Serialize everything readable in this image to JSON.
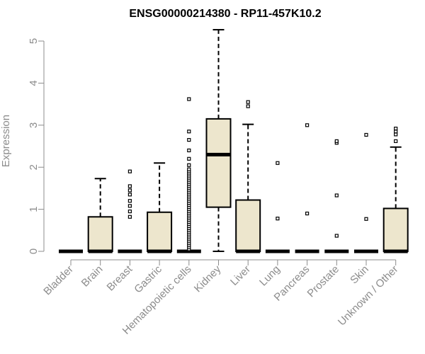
{
  "chart_data": {
    "type": "boxplot",
    "title": "ENSG00000214380 - RP11-457K10.2",
    "ylabel": "Expression",
    "xlabel": "",
    "ylim": [
      0,
      5.25
    ],
    "yticks": [
      0,
      1,
      2,
      3,
      4,
      5
    ],
    "grid": false,
    "colors": {
      "box_fill": "#ede6cd",
      "stroke": "#000000",
      "axis": "#8c8c8c"
    },
    "categories": [
      "Bladder",
      "Brain",
      "Breast",
      "Gastric",
      "Hematopoietic cells",
      "Kidney",
      "Liver",
      "Lung",
      "Pancreas",
      "Prostate",
      "Skin",
      "Unknown / Other"
    ],
    "boxes": [
      {
        "category": "Bladder",
        "q1": 0,
        "median": 0,
        "q3": 0,
        "whisker_low": 0,
        "whisker_high": 0,
        "outliers": []
      },
      {
        "category": "Brain",
        "q1": 0,
        "median": 0,
        "q3": 0.82,
        "whisker_low": 0,
        "whisker_high": 1.73,
        "outliers": []
      },
      {
        "category": "Breast",
        "q1": 0,
        "median": 0,
        "q3": 0,
        "whisker_low": 0,
        "whisker_high": 0,
        "outliers": [
          0.82,
          0.95,
          1.08,
          1.2,
          1.35,
          1.45,
          1.55,
          1.9
        ]
      },
      {
        "category": "Gastric",
        "q1": 0,
        "median": 0,
        "q3": 0.93,
        "whisker_low": 0,
        "whisker_high": 2.1,
        "outliers": []
      },
      {
        "category": "Hematopoietic cells",
        "q1": 0,
        "median": 0,
        "q3": 0,
        "whisker_low": 0,
        "whisker_high": 0,
        "outliers": [
          0.05,
          0.1,
          0.15,
          0.2,
          0.25,
          0.3,
          0.35,
          0.4,
          0.45,
          0.5,
          0.55,
          0.6,
          0.65,
          0.7,
          0.75,
          0.8,
          0.85,
          0.9,
          0.95,
          1.0,
          1.05,
          1.1,
          1.15,
          1.2,
          1.25,
          1.3,
          1.35,
          1.4,
          1.45,
          1.5,
          1.55,
          1.6,
          1.65,
          1.7,
          1.75,
          1.8,
          1.85,
          1.9,
          1.95,
          2.05,
          2.2,
          2.4,
          2.65,
          2.85,
          3.62
        ]
      },
      {
        "category": "Kidney",
        "q1": 1.05,
        "median": 2.3,
        "q3": 3.15,
        "whisker_low": 0,
        "whisker_high": 5.27,
        "outliers": []
      },
      {
        "category": "Liver",
        "q1": 0,
        "median": 0,
        "q3": 1.22,
        "whisker_low": 0,
        "whisker_high": 3.02,
        "outliers": [
          3.45,
          3.55
        ]
      },
      {
        "category": "Lung",
        "q1": 0,
        "median": 0,
        "q3": 0,
        "whisker_low": 0,
        "whisker_high": 0,
        "outliers": [
          0.78,
          2.1
        ]
      },
      {
        "category": "Pancreas",
        "q1": 0,
        "median": 0,
        "q3": 0,
        "whisker_low": 0,
        "whisker_high": 0,
        "outliers": [
          0.9,
          3.0
        ]
      },
      {
        "category": "Prostate",
        "q1": 0,
        "median": 0,
        "q3": 0,
        "whisker_low": 0,
        "whisker_high": 0,
        "outliers": [
          0.37,
          1.33,
          2.58,
          2.62
        ]
      },
      {
        "category": "Skin",
        "q1": 0,
        "median": 0,
        "q3": 0,
        "whisker_low": 0,
        "whisker_high": 0,
        "outliers": [
          0.77,
          2.77
        ]
      },
      {
        "category": "Unknown / Other",
        "q1": 0,
        "median": 0,
        "q3": 1.02,
        "whisker_low": 0,
        "whisker_high": 2.48,
        "outliers": [
          2.62,
          2.78,
          2.85,
          2.92
        ]
      }
    ]
  }
}
